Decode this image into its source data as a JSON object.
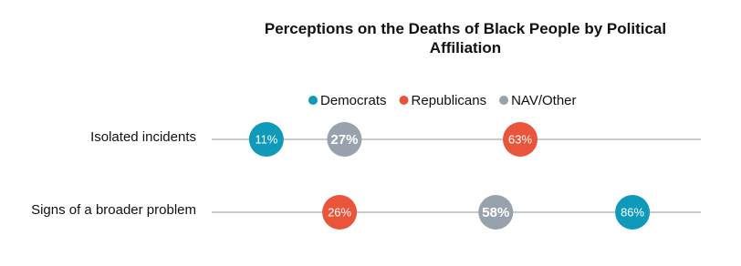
{
  "chart_data": {
    "type": "dot",
    "title": "Perceptions on the Deaths of Black People by Political Affiliation",
    "categories": [
      "Isolated incidents",
      "Signs of a broader problem"
    ],
    "series": [
      {
        "name": "Democrats",
        "color": "#0e9ab8",
        "values": [
          11,
          86
        ],
        "value_labels": [
          "11%",
          "86%"
        ]
      },
      {
        "name": "Republicans",
        "color": "#e8553a",
        "values": [
          63,
          26
        ],
        "value_labels": [
          "63%",
          "26%"
        ]
      },
      {
        "name": "NAV/Other",
        "color": "#97a2ad",
        "values": [
          27,
          58
        ],
        "value_labels": [
          "27%",
          "58%"
        ]
      }
    ],
    "xlim": [
      0,
      100
    ]
  }
}
